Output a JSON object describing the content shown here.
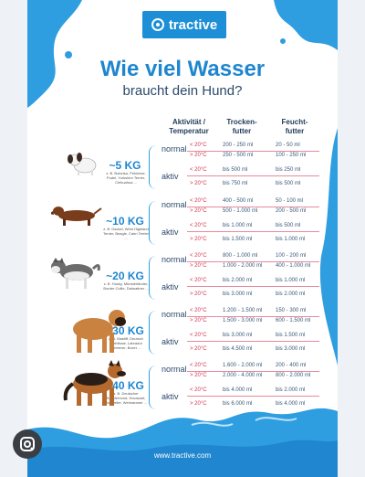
{
  "brand": {
    "logo_text": "tractive",
    "primary_color": "#1d8fd6",
    "accent_red": "#d2334f"
  },
  "title": "Wie viel Wasser",
  "subtitle": "braucht dein Hund?",
  "headers": {
    "activity": "Aktivität /\nTemperatur",
    "dry": "Trocken-\nfutter",
    "wet": "Feucht-\nfutter"
  },
  "rows": [
    {
      "weight": "~5 KG",
      "breeds": "z. B. Bolonka, Pekinese, Pudel, Yorkshire Terrier, Chihuahua ...",
      "normal": "normal",
      "aktiv": "aktiv",
      "cells": [
        [
          "< 20°C",
          "200 - 250 ml",
          "20 - 50 ml"
        ],
        [
          "> 20°C",
          "250 - 500 ml",
          "100 - 250 ml"
        ],
        [
          "< 20°C",
          "bis 500 ml",
          "bis 250 ml"
        ],
        [
          "> 20°C",
          "bis 750 ml",
          "bis 500 ml"
        ]
      ]
    },
    {
      "weight": "~10 KG",
      "breeds": "z. B. Dackel, West Highland Terrier, Beagle, Cairn Terrier ...",
      "normal": "normal",
      "aktiv": "aktiv",
      "cells": [
        [
          "< 20°C",
          "400 - 500 ml",
          "50 - 100 ml"
        ],
        [
          "> 20°C",
          "500 - 1.000 ml",
          "200 - 500 ml"
        ],
        [
          "< 20°C",
          "bis 1.000 ml",
          "bis 500 ml"
        ],
        [
          "> 20°C",
          "bis 1.500 ml",
          "bis 1.000 ml"
        ]
      ]
    },
    {
      "weight": "~20 KG",
      "breeds": "z. B. Husky, Münsterländer, Border Collie, Dalmatiner ...",
      "normal": "normal",
      "aktiv": "aktiv",
      "cells": [
        [
          "< 20°C",
          "800 - 1.000 ml",
          "100 - 200 ml"
        ],
        [
          "> 20°C",
          "1.000 - 2.000 ml",
          "400 - 1.000 ml"
        ],
        [
          "< 20°C",
          "bis 2.000 ml",
          "bis 1.000 ml"
        ],
        [
          "> 20°C",
          "bis 3.000 ml",
          "bis 2.000 ml"
        ]
      ]
    },
    {
      "weight": "~30 KG",
      "breeds": "z. B. Mastiff, Deutsch Drahthaar, Labrador Retriever, Boxer ...",
      "normal": "normal",
      "aktiv": "aktiv",
      "cells": [
        [
          "< 20°C",
          "1.200 - 1.500 ml",
          "150 - 300 ml"
        ],
        [
          "> 20°C",
          "1.500 - 3.000 ml",
          "600 - 1.500 ml"
        ],
        [
          "< 20°C",
          "bis 3.000 ml",
          "bis 1.500 ml"
        ],
        [
          "> 20°C",
          "bis 4.500 ml",
          "bis 3.000 ml"
        ]
      ]
    },
    {
      "weight": "~40 KG",
      "breeds": "z. B. Deutscher Schäferhund, Hovawart, Rottweiler, Weimaraner ...",
      "normal": "normal",
      "aktiv": "aktiv",
      "cells": [
        [
          "< 20°C",
          "1.600 - 2.000 ml",
          "200 - 400 ml"
        ],
        [
          "> 20°C",
          "2.000 - 4.000 ml",
          "800 - 2.000 ml"
        ],
        [
          "< 20°C",
          "bis 4.000 ml",
          "bis 2.000 ml"
        ],
        [
          "> 20°C",
          "bis 6.000 ml",
          "bis 4.000 ml"
        ]
      ]
    }
  ],
  "footer_url": "www.tractive.com",
  "lens_icon": "google-lens-icon"
}
